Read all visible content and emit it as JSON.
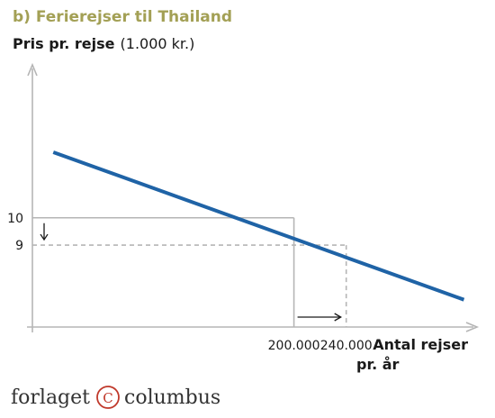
{
  "chart_data": {
    "type": "line",
    "title": "b) Ferierejser til Thailand",
    "ylabel": "Pris pr. rejse",
    "ylabel_unit": "(1.000 kr.)",
    "xlabel_line1": "Antal rejser",
    "xlabel_line2": "pr. år",
    "x_ticks": [
      {
        "value": 200000,
        "label": "200.000"
      },
      {
        "value": 240000,
        "label": "240.000"
      }
    ],
    "y_ticks": [
      {
        "value": 10,
        "label": "10"
      },
      {
        "value": 9,
        "label": "9"
      }
    ],
    "series": [
      {
        "color": "#1f63a6",
        "x": [
          16000,
          330000
        ],
        "y": [
          12.4,
          7.0
        ]
      }
    ],
    "guides": [
      {
        "x": 200000,
        "y": 10,
        "style": "solid",
        "color": "#b5b5b5"
      },
      {
        "x": 240000,
        "y": 9,
        "style": "dashed",
        "color": "#b5b5b5"
      }
    ],
    "annotations": [
      {
        "kind": "arrow-down",
        "meaning": "price falls from 10 to 9"
      },
      {
        "kind": "arrow-right",
        "meaning": "trips rise from 200.000 to 240.000"
      }
    ],
    "xlim": [
      0,
      340000
    ],
    "ylim": [
      6.0,
      15.6
    ],
    "grid": false
  },
  "footer": {
    "brand_left": "forlaget",
    "brand_symbol": "C",
    "brand_right": "columbus"
  }
}
